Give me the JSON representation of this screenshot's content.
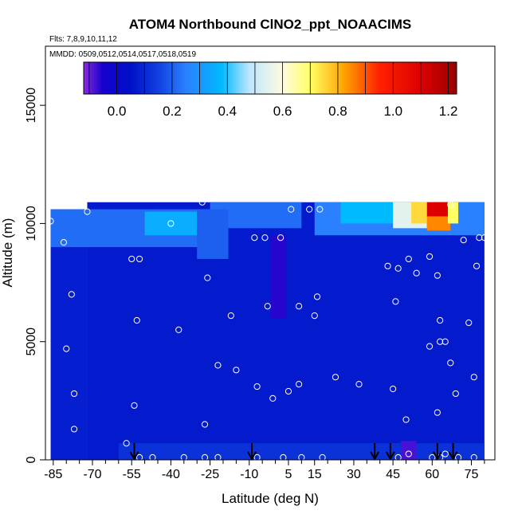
{
  "chart_data": {
    "type": "heatmap",
    "title": "ATOM4 Northbound ClNO2_ppt_NOAACIMS",
    "flights_label": "Flts: 7,8,9,10,11,12",
    "dates_label": "MMDD: 0509,0512,0514,0517,0518,0519",
    "xlabel": "Latitude (deg N)",
    "ylabel": "Altitude (m)",
    "xlim": [
      -88,
      84
    ],
    "ylim": [
      0,
      17500
    ],
    "x_ticks": [
      -85,
      -70,
      -55,
      -40,
      -25,
      -10,
      5,
      15,
      30,
      45,
      60,
      75
    ],
    "x_tick_labels": [
      "-85",
      "-70",
      "-55",
      "-40",
      "-25",
      "-10",
      "5",
      "15",
      "30",
      "45",
      "60",
      "75"
    ],
    "y_ticks": [
      0,
      5000,
      10000,
      15000
    ],
    "y_tick_labels": [
      "0",
      "5000",
      "10000",
      "15000"
    ],
    "colorbar": {
      "min": -0.12,
      "max": 1.23,
      "ticks": [
        0.0,
        0.2,
        0.4,
        0.6,
        0.8,
        1.0,
        1.2
      ],
      "tick_labels": [
        "0.0",
        "0.2",
        "0.4",
        "0.6",
        "0.8",
        "1.0",
        "1.2"
      ],
      "stops": [
        {
          "v": -0.12,
          "c": "#8a2be2"
        },
        {
          "v": -0.05,
          "c": "#1500cc"
        },
        {
          "v": 0.05,
          "c": "#0010c8"
        },
        {
          "v": 0.15,
          "c": "#1040e0"
        },
        {
          "v": 0.25,
          "c": "#2a80ff"
        },
        {
          "v": 0.38,
          "c": "#00baff"
        },
        {
          "v": 0.48,
          "c": "#bfe6ff"
        },
        {
          "v": 0.6,
          "c": "#fffbe0"
        },
        {
          "v": 0.7,
          "c": "#ffff66"
        },
        {
          "v": 0.82,
          "c": "#ffa500"
        },
        {
          "v": 0.95,
          "c": "#ff2200"
        },
        {
          "v": 1.1,
          "c": "#dd0000"
        },
        {
          "v": 1.23,
          "c": "#990000"
        }
      ]
    },
    "sample_points": [
      [
        -86,
        10100
      ],
      [
        -81,
        9200
      ],
      [
        -78,
        7000
      ],
      [
        -80,
        4700
      ],
      [
        -77,
        2800
      ],
      [
        -77,
        1300
      ],
      [
        -72,
        10500
      ],
      [
        -55,
        8500
      ],
      [
        -52,
        8500
      ],
      [
        -53,
        5900
      ],
      [
        -54,
        2300
      ],
      [
        -57,
        700
      ],
      [
        -40,
        10000
      ],
      [
        -37,
        5500
      ],
      [
        -28,
        10900
      ],
      [
        -26,
        7700
      ],
      [
        -27,
        1500
      ],
      [
        -22,
        4000
      ],
      [
        -17,
        6100
      ],
      [
        -15,
        3800
      ],
      [
        -8,
        9400
      ],
      [
        -4,
        9400
      ],
      [
        -3,
        6500
      ],
      [
        -7,
        3100
      ],
      [
        -1,
        2600
      ],
      [
        2,
        9400
      ],
      [
        6,
        10600
      ],
      [
        5,
        2900
      ],
      [
        9,
        6500
      ],
      [
        9,
        3200
      ],
      [
        13,
        10600
      ],
      [
        17,
        10600
      ],
      [
        15,
        6100
      ],
      [
        16,
        6900
      ],
      [
        23,
        3500
      ],
      [
        32,
        3200
      ],
      [
        43,
        8200
      ],
      [
        47,
        8100
      ],
      [
        46,
        6700
      ],
      [
        45,
        3000
      ],
      [
        50,
        1700
      ],
      [
        51,
        8500
      ],
      [
        54,
        7900
      ],
      [
        59,
        8600
      ],
      [
        62,
        7800
      ],
      [
        63,
        5000
      ],
      [
        63,
        5900
      ],
      [
        65,
        5000
      ],
      [
        59,
        4800
      ],
      [
        67,
        4100
      ],
      [
        62,
        2000
      ],
      [
        69,
        2800
      ],
      [
        72,
        9300
      ],
      [
        74,
        5800
      ],
      [
        76,
        3500
      ],
      [
        77,
        8200
      ],
      [
        78,
        9400
      ],
      [
        80,
        9400
      ],
      [
        83,
        6300
      ],
      [
        67,
        10800
      ],
      [
        51,
        250
      ],
      [
        -52,
        100
      ],
      [
        -47,
        100
      ],
      [
        -35,
        100
      ],
      [
        -27,
        100
      ],
      [
        -22,
        100
      ],
      [
        -7,
        100
      ],
      [
        3,
        100
      ],
      [
        10,
        100
      ],
      [
        18,
        100
      ],
      [
        47,
        100
      ],
      [
        60,
        100
      ],
      [
        63,
        100
      ],
      [
        65,
        250
      ],
      [
        70,
        100
      ],
      [
        76,
        100
      ],
      [
        82,
        100
      ]
    ],
    "profile_arrows": [
      -54,
      -9,
      38,
      44,
      62,
      68
    ],
    "field_regions": [
      {
        "lat_min": -86,
        "lat_max": -72,
        "alt_min": 0,
        "alt_max": 10600,
        "value": 0.08
      },
      {
        "lat_min": -72,
        "lat_max": 80,
        "alt_min": 0,
        "alt_max": 10900,
        "value": 0.07
      },
      {
        "lat_min": -60,
        "lat_max": 80,
        "alt_min": 0,
        "alt_max": 700,
        "value": 0.12
      },
      {
        "lat_min": -86,
        "lat_max": -20,
        "alt_min": 9000,
        "alt_max": 10600,
        "value": 0.22
      },
      {
        "lat_min": -50,
        "lat_max": -30,
        "alt_min": 9500,
        "alt_max": 10500,
        "value": 0.35
      },
      {
        "lat_min": -25,
        "lat_max": 10,
        "alt_min": 9800,
        "alt_max": 10900,
        "value": 0.22
      },
      {
        "lat_min": -30,
        "lat_max": -18,
        "alt_min": 8500,
        "alt_max": 10600,
        "value": 0.2
      },
      {
        "lat_min": 15,
        "lat_max": 80,
        "alt_min": 9500,
        "alt_max": 10900,
        "value": 0.25
      },
      {
        "lat_min": 25,
        "lat_max": 50,
        "alt_min": 10000,
        "alt_max": 10900,
        "value": 0.38
      },
      {
        "lat_min": 45,
        "lat_max": 58,
        "alt_min": 9800,
        "alt_max": 10900,
        "value": 0.55
      },
      {
        "lat_min": 52,
        "lat_max": 60,
        "alt_min": 10000,
        "alt_max": 10900,
        "value": 0.75
      },
      {
        "lat_min": 58,
        "lat_max": 67,
        "alt_min": 10300,
        "alt_max": 10900,
        "value": 1.1
      },
      {
        "lat_min": 58,
        "lat_max": 67,
        "alt_min": 9700,
        "alt_max": 10300,
        "value": 0.85
      },
      {
        "lat_min": 66,
        "lat_max": 70,
        "alt_min": 10000,
        "alt_max": 10900,
        "value": 0.7
      },
      {
        "lat_min": -2,
        "lat_max": 4,
        "alt_min": 6000,
        "alt_max": 9500,
        "value": -0.06
      },
      {
        "lat_min": 48,
        "lat_max": 54,
        "alt_min": 0,
        "alt_max": 800,
        "value": -0.08
      }
    ]
  }
}
